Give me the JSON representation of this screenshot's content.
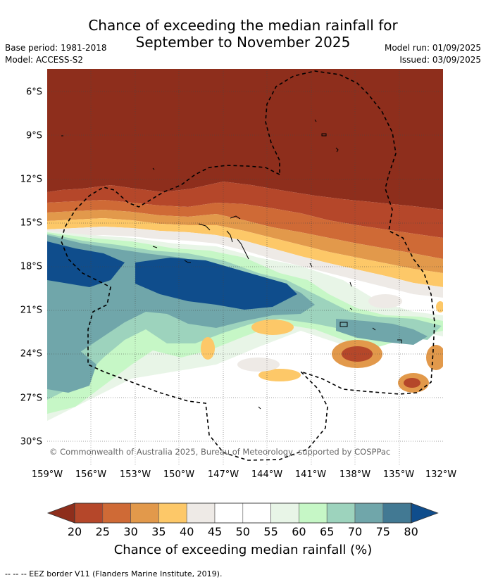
{
  "header": {
    "title_line1": "Chance of exceeding the median rainfall for",
    "title_line2": "September to November 2025",
    "base_period": "Base period: 1981-2018",
    "model": "Model: ACCESS-S2",
    "model_run": "Model run: 01/09/2025",
    "issued": "Issued: 03/09/2025"
  },
  "map": {
    "lat_labels": [
      "6°S",
      "9°S",
      "12°S",
      "15°S",
      "18°S",
      "21°S",
      "24°S",
      "27°S",
      "30°S"
    ],
    "lon_labels": [
      "159°W",
      "156°W",
      "153°W",
      "150°W",
      "147°W",
      "144°W",
      "141°W",
      "138°W",
      "135°W",
      "132°W"
    ],
    "copyright": "© Commonwealth of Australia 2025, Bureau of Meteorology, supported by COSPPac"
  },
  "colorbar": {
    "ticks": [
      "20",
      "25",
      "30",
      "35",
      "40",
      "45",
      "50",
      "55",
      "60",
      "65",
      "70",
      "75",
      "80"
    ],
    "colors": [
      "#8e2e1c",
      "#b5472a",
      "#cf6a36",
      "#e2994b",
      "#fdc868",
      "#eeeae6",
      "#ffffff",
      "#ffffff",
      "#e8f5e7",
      "#c6f7c6",
      "#9dd3bd",
      "#70a6aa",
      "#427993",
      "#0f4d8c"
    ],
    "title": "Chance of exceeding median rainfall (%)"
  },
  "footnote": "-- -- -- EEZ border V11 (Flanders Marine Institute, 2019)."
}
